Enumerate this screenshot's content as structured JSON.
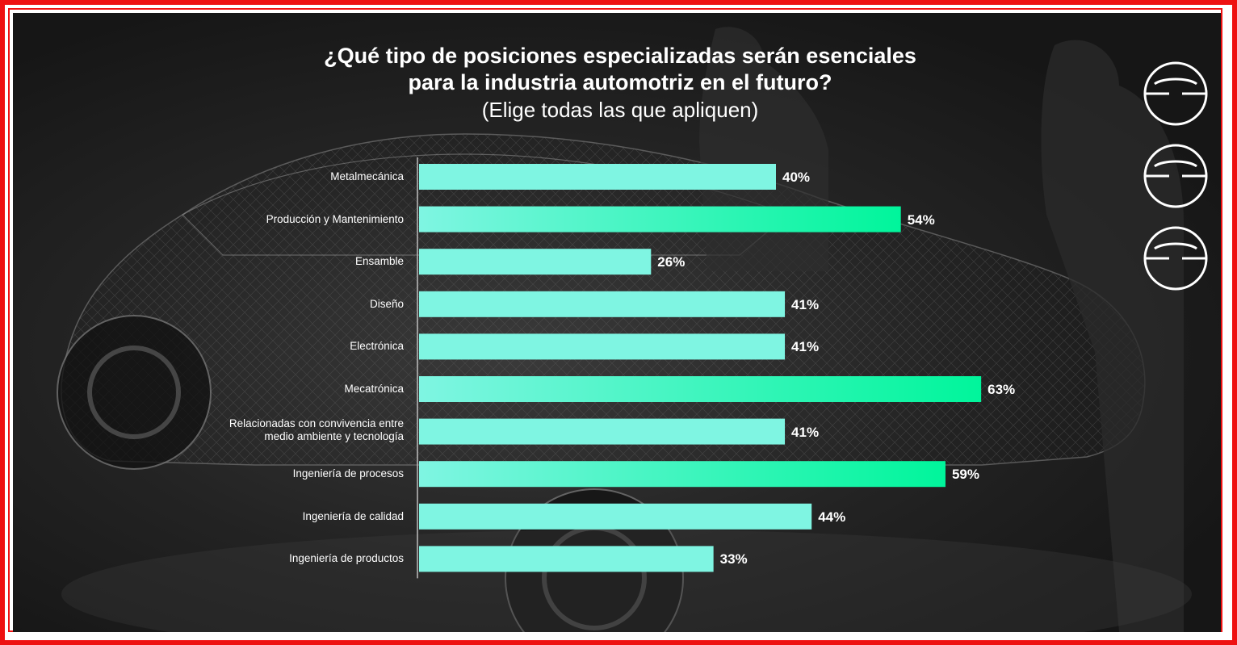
{
  "chart_data": {
    "type": "bar",
    "orientation": "horizontal",
    "title_line1": "¿Qué tipo de posiciones especializadas serán esenciales",
    "title_line2": "para la industria automotriz en el futuro?",
    "subtitle": "(Elige todas las que apliquen)",
    "categories": [
      "Metalmecánica",
      "Producción y Mantenimiento",
      "Ensamble",
      "Diseño",
      "Electrónica",
      "Mecatrónica",
      "Relacionadas con convivencia entre medio ambiente y tecnología",
      "Ingeniería de procesos",
      "Ingeniería de calidad",
      "Ingeniería de productos"
    ],
    "values": [
      40,
      54,
      26,
      41,
      41,
      63,
      41,
      59,
      44,
      33
    ],
    "value_labels": [
      "40%",
      "54%",
      "26%",
      "41%",
      "41%",
      "63%",
      "41%",
      "59%",
      "44%",
      "33%"
    ],
    "xlim": [
      0,
      100
    ],
    "grid": false,
    "legend": "none",
    "colors": {
      "bar_base": "#7ff5e2",
      "bar_highlight": "#00f59b",
      "text": "#ffffff",
      "background": "#1e1e1e",
      "frame": "#ee1111"
    }
  },
  "decor": {
    "logo_icon": "stacked-ring-logo-icon",
    "background_image": "wireframe-car-with-engineers"
  }
}
